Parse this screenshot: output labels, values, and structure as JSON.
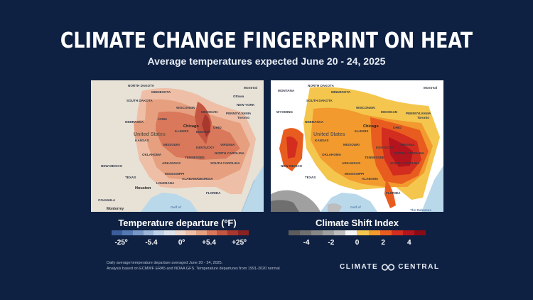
{
  "title": "CLIMATE CHANGE FINGERPRINT ON HEAT",
  "subtitle": "Average temperatures expected June 20 - 24, 2025",
  "colors": {
    "background": "#0f2142",
    "ocean": "#b9d8ea",
    "land_left": "#e7e1d6",
    "land_right": "#ffffff"
  },
  "map_left": {
    "labels": [
      "NORTH DAKOTA",
      "SOUTH DAKOTA",
      "MINNESOTA",
      "WISCONSIN",
      "MICHIGAN",
      "NEBRASKA",
      "IOWA",
      "Chicago",
      "ILLINOIS",
      "INDIANA",
      "OHIO",
      "PENNSYLVANIA",
      "NEW YORK",
      "United States",
      "KANSAS",
      "MISSOURI",
      "KENTUCKY",
      "VIRGINIA",
      "OKLAHOMA",
      "TENNESSEE",
      "NORTH CAROLINA",
      "ARKANSAS",
      "SOUTH CAROLINA",
      "NEW MEXICO",
      "MISSISSIPPI",
      "ALABAMA",
      "GEORGIA",
      "TEXAS",
      "LOUISIANA",
      "Houston",
      "FLORIDA",
      "COAHUILA",
      "Monterrey",
      "Gulf of",
      "Toronto",
      "Montreal",
      "Ottawa"
    ]
  },
  "map_right": {
    "labels": [
      "MONTANA",
      "NORTH DAKOTA",
      "SOUTH DAKOTA",
      "WYOMING",
      "MINNESOTA",
      "WISCONSIN",
      "MICHIGAN",
      "NEBRASKA",
      "Chicago",
      "ILLINOIS",
      "OHIO",
      "PENNSYLVANIA",
      "United States",
      "KANSAS",
      "MISSOURI",
      "KENTUCKY",
      "VIRGINIA",
      "OKLAHOMA",
      "TENNESSEE",
      "NORTH CAROLINA",
      "ARKANSAS",
      "SOUTH CAROLINA",
      "NEW MEXICO",
      "MISSISSIPPI",
      "ALABAMA",
      "TEXAS",
      "FLORIDA",
      "Toronto",
      "Montreal",
      "Gulf of",
      "The Bahamas"
    ]
  },
  "legend_left": {
    "title": "Temperature departure (ºF)",
    "colors": [
      "#3b5d9b",
      "#5579b3",
      "#7897c8",
      "#9cb6d9",
      "#bfd1e6",
      "#dde3ec",
      "#eed8cb",
      "#eebfa6",
      "#e6a07f",
      "#d9785a",
      "#c45541",
      "#a8372e",
      "#8a2223"
    ],
    "ticks": [
      "-25º",
      "-5.4",
      "0º",
      "+5.4",
      "+25º"
    ]
  },
  "legend_right": {
    "title": "Climate Shift Index",
    "colors": [
      "#5c5c5c",
      "#6f6f6f",
      "#878787",
      "#a0a0a0",
      "#bdbdbd",
      "#f5f5f5",
      "#f4c64e",
      "#f29a2e",
      "#e85d1f",
      "#d32d1f",
      "#b3141e",
      "#8a0b16"
    ],
    "ticks": [
      "-4",
      "-2",
      "0",
      "2",
      "4"
    ]
  },
  "footnote": {
    "line1": "Daily average temperature departure averaged June 20 - 24, 2025.",
    "line2": "Analysis based on ECMWF ERA5 and NOAA GFS. Temperature departures from 1991-2020 normal"
  },
  "logo": {
    "left": "CLIMATE",
    "right": "CENTRAL"
  }
}
